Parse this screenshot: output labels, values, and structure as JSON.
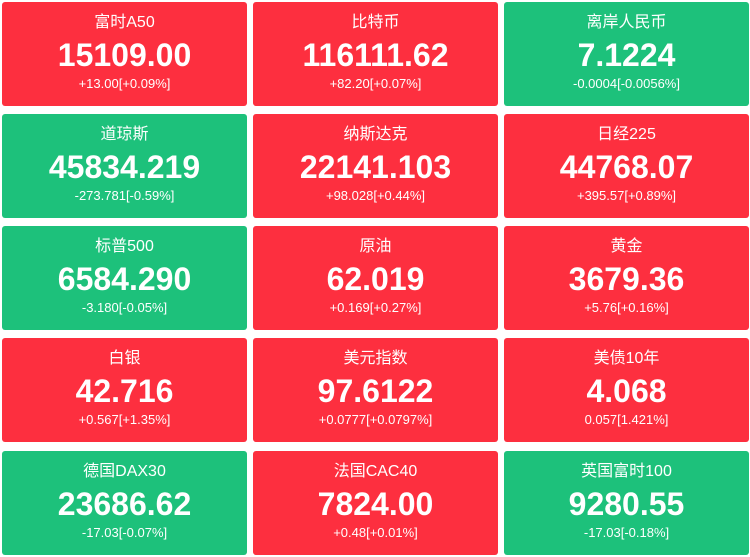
{
  "tiles": [
    {
      "name": "富时A50",
      "price": "15109.00",
      "change": "+13.00[+0.09%]",
      "color": "#fd2f3f"
    },
    {
      "name": "比特币",
      "price": "116111.62",
      "change": "+82.20[+0.07%]",
      "color": "#fd2f3f"
    },
    {
      "name": "离岸人民币",
      "price": "7.1224",
      "change": "-0.0004[-0.0056%]",
      "color": "#1dc17b"
    },
    {
      "name": "道琼斯",
      "price": "45834.219",
      "change": "-273.781[-0.59%]",
      "color": "#1dc17b"
    },
    {
      "name": "纳斯达克",
      "price": "22141.103",
      "change": "+98.028[+0.44%]",
      "color": "#fd2f3f"
    },
    {
      "name": "日经225",
      "price": "44768.07",
      "change": "+395.57[+0.89%]",
      "color": "#fd2f3f"
    },
    {
      "name": "标普500",
      "price": "6584.290",
      "change": "-3.180[-0.05%]",
      "color": "#1dc17b"
    },
    {
      "name": "原油",
      "price": "62.019",
      "change": "+0.169[+0.27%]",
      "color": "#fd2f3f"
    },
    {
      "name": "黄金",
      "price": "3679.36",
      "change": "+5.76[+0.16%]",
      "color": "#fd2f3f"
    },
    {
      "name": "白银",
      "price": "42.716",
      "change": "+0.567[+1.35%]",
      "color": "#fd2f3f"
    },
    {
      "name": "美元指数",
      "price": "97.6122",
      "change": "+0.0777[+0.0797%]",
      "color": "#fd2f3f"
    },
    {
      "name": "美债10年",
      "price": "4.068",
      "change": "0.057[1.421%]",
      "color": "#fd2f3f"
    },
    {
      "name": "德国DAX30",
      "price": "23686.62",
      "change": "-17.03[-0.07%]",
      "color": "#1dc17b"
    },
    {
      "name": "法国CAC40",
      "price": "7824.00",
      "change": "+0.48[+0.01%]",
      "color": "#fd2f3f"
    },
    {
      "name": "英国富时100",
      "price": "9280.55",
      "change": "-17.03[-0.18%]",
      "color": "#1dc17b"
    }
  ]
}
